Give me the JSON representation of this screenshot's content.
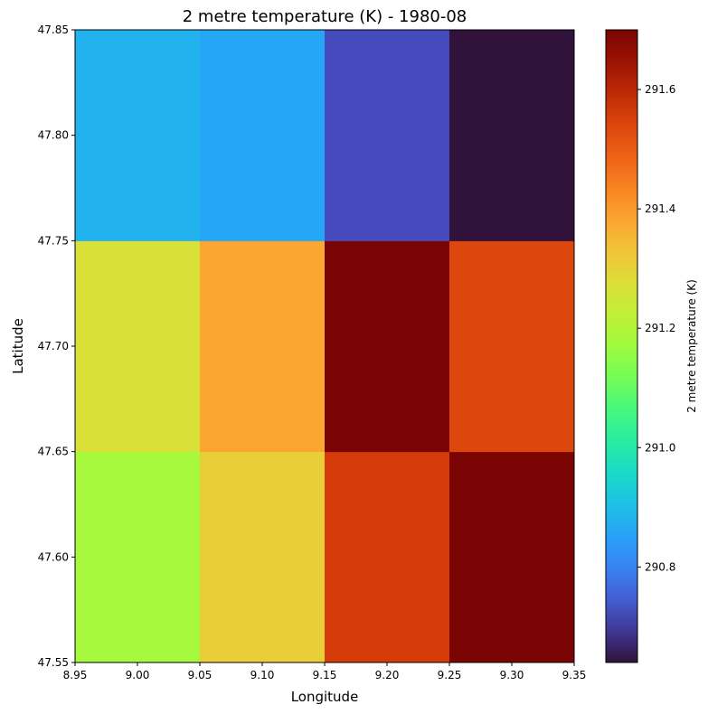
{
  "chart_data": {
    "type": "heatmap",
    "title": "2 metre temperature (K) - 1980-08",
    "xlabel": "Longitude",
    "ylabel": "Latitude",
    "colorbar_label": "2 metre temperature (K)",
    "colormap": "turbo",
    "xlim": [
      8.95,
      9.35
    ],
    "ylim": [
      47.55,
      47.85
    ],
    "clim": [
      290.64,
      291.7
    ],
    "x_edges": [
      8.95,
      9.05,
      9.15,
      9.25,
      9.35
    ],
    "y_edges": [
      47.55,
      47.65,
      47.75,
      47.85
    ],
    "x_ticks": [
      "8.95",
      "9.00",
      "9.05",
      "9.10",
      "9.15",
      "9.20",
      "9.25",
      "9.30",
      "9.35"
    ],
    "y_ticks": [
      "47.55",
      "47.60",
      "47.65",
      "47.70",
      "47.75",
      "47.80",
      "47.85"
    ],
    "colorbar_ticks": [
      "290.8",
      "291.0",
      "291.2",
      "291.4",
      "291.6"
    ],
    "rows": [
      {
        "lat": "47.60",
        "values": [
          291.18,
          291.31,
          291.56,
          291.7
        ]
      },
      {
        "lat": "47.70",
        "values": [
          291.27,
          291.38,
          291.7,
          291.54
        ]
      },
      {
        "lat": "47.80",
        "values": [
          290.88,
          290.86,
          290.72,
          290.64
        ]
      }
    ],
    "grid": false
  }
}
